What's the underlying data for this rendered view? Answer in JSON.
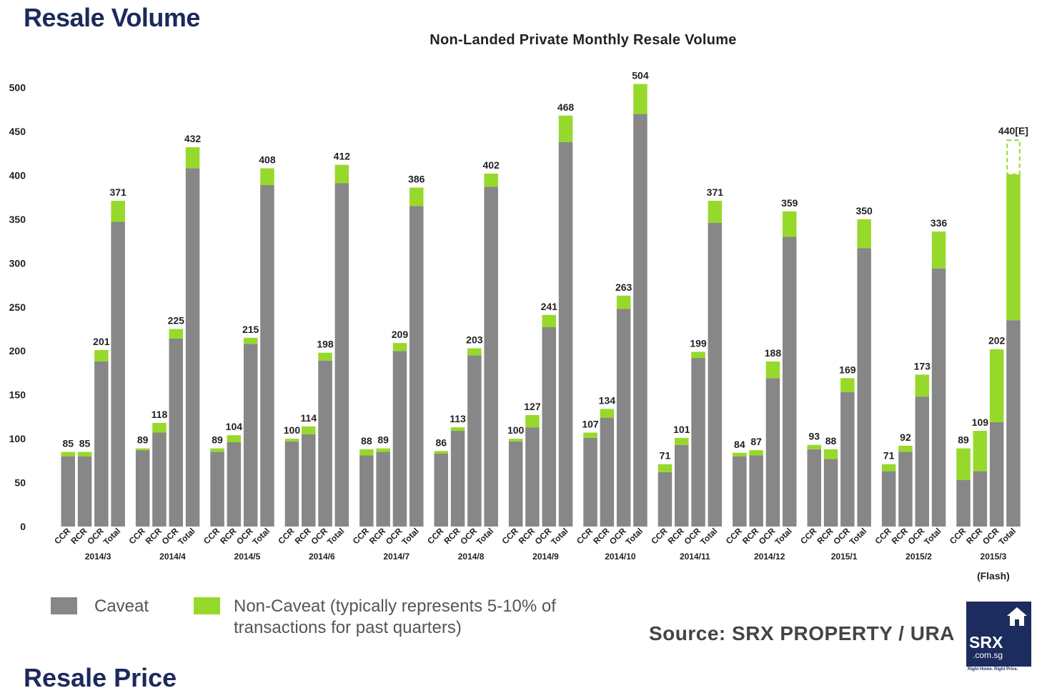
{
  "page": {
    "heading": "Resale Volume",
    "next_heading": "Resale Price"
  },
  "colors": {
    "caveat": "#878787",
    "non_caveat": "#97d92b",
    "heading": "#1c2a5c",
    "logo_bg": "#1c2c5e"
  },
  "legend": {
    "caveat": "Caveat",
    "non_caveat_line1": "Non-Caveat (typically represents 5-10% of",
    "non_caveat_line2": "transactions for past quarters)"
  },
  "source": "Source:  SRX PROPERTY / URA",
  "logo": {
    "icon": "house-icon",
    "name": "SRX",
    "domain": ".com.sg",
    "tagline": "Right Home. Right Price."
  },
  "chart_data": {
    "type": "bar",
    "stacked": true,
    "title": "Non-Landed Private Monthly Resale Volume",
    "ylim": [
      0,
      500
    ],
    "yticks": [
      0,
      50,
      100,
      150,
      200,
      250,
      300,
      350,
      400,
      450,
      500
    ],
    "grid": false,
    "legend_position": "bottom-left",
    "subcategories": [
      "CCR",
      "RCR",
      "OCR",
      "Total"
    ],
    "series_names": [
      "Caveat",
      "Non-Caveat"
    ],
    "groups": [
      {
        "label": "2014/3",
        "caveat": [
          80,
          80,
          188,
          347
        ],
        "total": [
          85,
          85,
          201,
          371
        ]
      },
      {
        "label": "2014/4",
        "caveat": [
          87,
          107,
          214,
          408
        ],
        "total": [
          89,
          118,
          225,
          432
        ]
      },
      {
        "label": "2014/5",
        "caveat": [
          85,
          96,
          208,
          389
        ],
        "total": [
          89,
          104,
          215,
          408
        ]
      },
      {
        "label": "2014/6",
        "caveat": [
          97,
          105,
          189,
          391
        ],
        "total": [
          100,
          114,
          198,
          412
        ]
      },
      {
        "label": "2014/7",
        "caveat": [
          81,
          85,
          200,
          365
        ],
        "total": [
          88,
          89,
          209,
          386
        ]
      },
      {
        "label": "2014/8",
        "caveat": [
          83,
          109,
          195,
          387
        ],
        "total": [
          86,
          113,
          203,
          402
        ]
      },
      {
        "label": "2014/9",
        "caveat": [
          97,
          113,
          227,
          438
        ],
        "total": [
          100,
          127,
          241,
          468
        ]
      },
      {
        "label": "2014/10",
        "caveat": [
          101,
          124,
          248,
          470
        ],
        "total": [
          107,
          134,
          263,
          504
        ]
      },
      {
        "label": "2014/11",
        "caveat": [
          62,
          93,
          192,
          346
        ],
        "total": [
          71,
          101,
          199,
          371
        ]
      },
      {
        "label": "2014/12",
        "caveat": [
          80,
          81,
          169,
          330
        ],
        "total": [
          84,
          87,
          188,
          359
        ]
      },
      {
        "label": "2015/1",
        "caveat": [
          88,
          77,
          153,
          317
        ],
        "total": [
          93,
          88,
          169,
          350
        ]
      },
      {
        "label": "2015/2",
        "caveat": [
          63,
          85,
          148,
          294
        ],
        "total": [
          71,
          92,
          173,
          336
        ]
      },
      {
        "label": "2015/3",
        "caveat": [
          53,
          63,
          119,
          235
        ],
        "total": [
          89,
          109,
          202,
          401
        ],
        "note": "(Flash)",
        "estimate_total": 440,
        "estimate_label": "440[E]"
      }
    ]
  }
}
